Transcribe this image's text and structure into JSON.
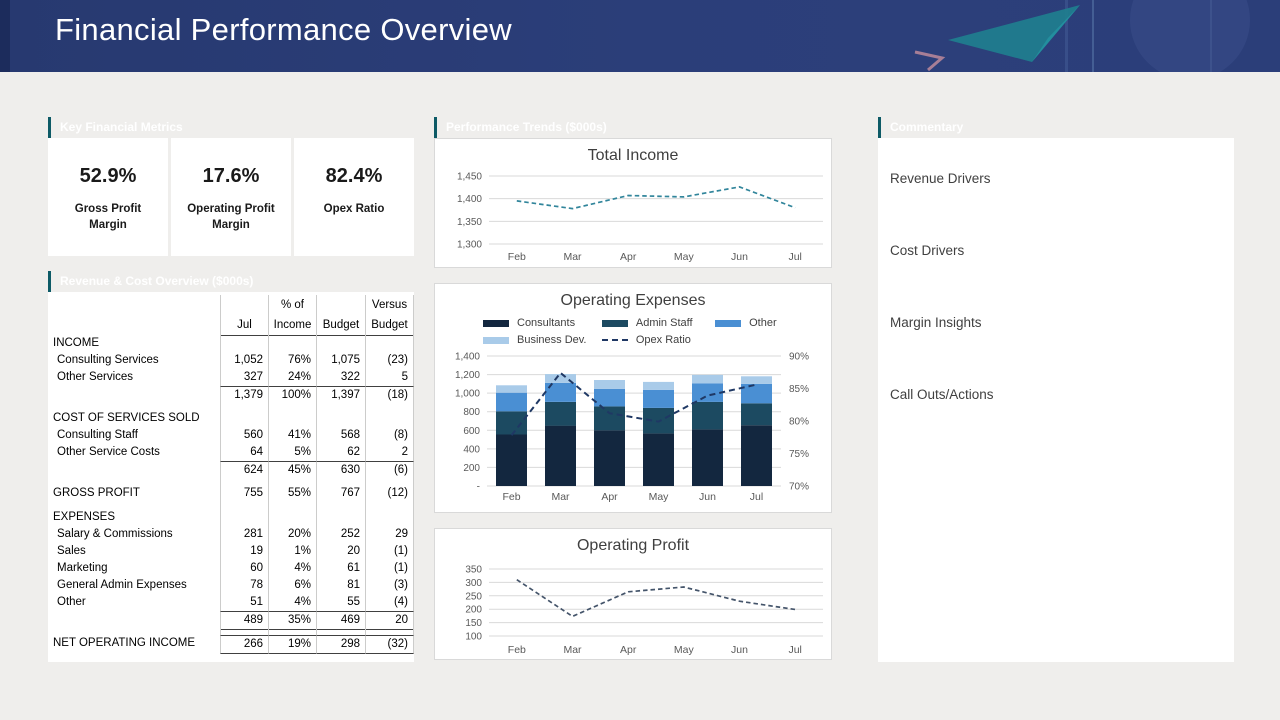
{
  "header": {
    "title": "Financial Performance Overview"
  },
  "colors": {
    "header_navy": "#2b3e79",
    "accent_teal": "#17798a",
    "page_background": "#efeeec",
    "grid_gray": "#d9d9d9",
    "axis_text": "#595959"
  },
  "panels": {
    "metrics": {
      "title": "Key Financial Metrics",
      "kpis": [
        {
          "value": "52.9%",
          "label": "Gross Profit Margin"
        },
        {
          "value": "17.6%",
          "label": "Operating Profit Margin"
        },
        {
          "value": "82.4%",
          "label": "Opex Ratio"
        }
      ]
    },
    "table": {
      "title": "Revenue & Cost Overview  ($000s)",
      "col_headers_line1": [
        "",
        "",
        "% of",
        "",
        "Versus"
      ],
      "col_headers_line2": [
        "",
        "Jul",
        "Income",
        "Budget",
        "Budget"
      ],
      "rows": [
        {
          "type": "section",
          "label": "INCOME",
          "jul": "",
          "pct": "",
          "budget": "",
          "versus": ""
        },
        {
          "type": "item",
          "label": "Consulting Services",
          "jul": "1,052",
          "pct": "76%",
          "budget": "1,075",
          "versus": "(23)"
        },
        {
          "type": "item",
          "label": "Other Services",
          "jul": "327",
          "pct": "24%",
          "budget": "322",
          "versus": "5"
        },
        {
          "type": "subtotal",
          "label": "",
          "jul": "1,379",
          "pct": "100%",
          "budget": "1,397",
          "versus": "(18)"
        },
        {
          "type": "spacer"
        },
        {
          "type": "section",
          "label": "COST OF SERVICES SOLD",
          "jul": "",
          "pct": "",
          "budget": "",
          "versus": ""
        },
        {
          "type": "item",
          "label": "Consulting Staff",
          "jul": "560",
          "pct": "41%",
          "budget": "568",
          "versus": "(8)"
        },
        {
          "type": "item",
          "label": "Other Service Costs",
          "jul": "64",
          "pct": "5%",
          "budget": "62",
          "versus": "2"
        },
        {
          "type": "subtotal",
          "label": "",
          "jul": "624",
          "pct": "45%",
          "budget": "630",
          "versus": "(6)"
        },
        {
          "type": "spacer"
        },
        {
          "type": "section",
          "label": "GROSS PROFIT",
          "jul": "755",
          "pct": "55%",
          "budget": "767",
          "versus": "(12)"
        },
        {
          "type": "spacer"
        },
        {
          "type": "section",
          "label": "EXPENSES",
          "jul": "",
          "pct": "",
          "budget": "",
          "versus": ""
        },
        {
          "type": "item",
          "label": "Salary & Commissions",
          "jul": "281",
          "pct": "20%",
          "budget": "252",
          "versus": "29"
        },
        {
          "type": "item",
          "label": "Sales",
          "jul": "19",
          "pct": "1%",
          "budget": "20",
          "versus": "(1)"
        },
        {
          "type": "item",
          "label": "Marketing",
          "jul": "60",
          "pct": "4%",
          "budget": "61",
          "versus": "(1)"
        },
        {
          "type": "item",
          "label": "General Admin Expenses",
          "jul": "78",
          "pct": "6%",
          "budget": "81",
          "versus": "(3)"
        },
        {
          "type": "item",
          "label": "Other",
          "jul": "51",
          "pct": "4%",
          "budget": "55",
          "versus": "(4)"
        },
        {
          "type": "subtotal2",
          "label": "",
          "jul": "489",
          "pct": "35%",
          "budget": "469",
          "versus": "20"
        },
        {
          "type": "spacer"
        },
        {
          "type": "total",
          "label": "NET OPERATING INCOME",
          "jul": "266",
          "pct": "19%",
          "budget": "298",
          "versus": "(32)"
        }
      ]
    },
    "trends": {
      "title": "Performance Trends ($000s)"
    },
    "commentary": {
      "title": "Commentary",
      "items": [
        "Revenue Drivers",
        "Cost Drivers",
        "Margin Insights",
        "Call Outs/Actions"
      ]
    }
  },
  "chart_data": [
    {
      "type": "line",
      "title": "Total Income",
      "x": [
        "Feb",
        "Mar",
        "Apr",
        "May",
        "Jun",
        "Jul"
      ],
      "values": [
        1395,
        1378,
        1407,
        1404,
        1426,
        1380
      ],
      "ylim": [
        1300,
        1450
      ],
      "yticks": [
        1300,
        1350,
        1400,
        1450
      ],
      "line_color": "#31859b",
      "line_style": "dashed",
      "grid": true,
      "legend": "none"
    },
    {
      "type": "bar",
      "subtype": "stacked-with-line",
      "title": "Operating Expenses",
      "categories": [
        "Feb",
        "Mar",
        "Apr",
        "May",
        "Jun",
        "Jul"
      ],
      "series": [
        {
          "name": "Consultants",
          "color": "#13273f",
          "values": [
            555,
            650,
            600,
            566,
            610,
            655
          ]
        },
        {
          "name": "Admin Staff",
          "color": "#1c4a61",
          "values": [
            250,
            255,
            257,
            275,
            296,
            236
          ]
        },
        {
          "name": "Other",
          "color": "#4a8fd3",
          "values": [
            200,
            205,
            190,
            195,
            200,
            210
          ]
        },
        {
          "name": "Business Dev.",
          "color": "#a9cbe9",
          "values": [
            80,
            95,
            95,
            85,
            90,
            80
          ]
        }
      ],
      "line_series": {
        "name": "Opex Ratio",
        "color": "#1f3864",
        "axis": "right",
        "values": [
          77.8,
          87.4,
          81.2,
          79.9,
          83.9,
          85.6
        ]
      },
      "ylim_left": [
        0,
        1400
      ],
      "yticks_left": [
        0,
        200,
        400,
        600,
        800,
        1000,
        1200,
        1400
      ],
      "ylim_right": [
        70,
        90
      ],
      "yticks_right": [
        70,
        75,
        80,
        85,
        90
      ],
      "zero_label": "-",
      "grid": true,
      "legend": "top"
    },
    {
      "type": "line",
      "title": "Operating Profit",
      "x": [
        "Feb",
        "Mar",
        "Apr",
        "May",
        "Jun",
        "Jul"
      ],
      "values": [
        310,
        173,
        265,
        283,
        230,
        199
      ],
      "ylim": [
        100,
        350
      ],
      "yticks": [
        100,
        150,
        200,
        250,
        300,
        350
      ],
      "line_color": "#44546a",
      "line_style": "dashed",
      "grid": true,
      "legend": "none"
    }
  ]
}
